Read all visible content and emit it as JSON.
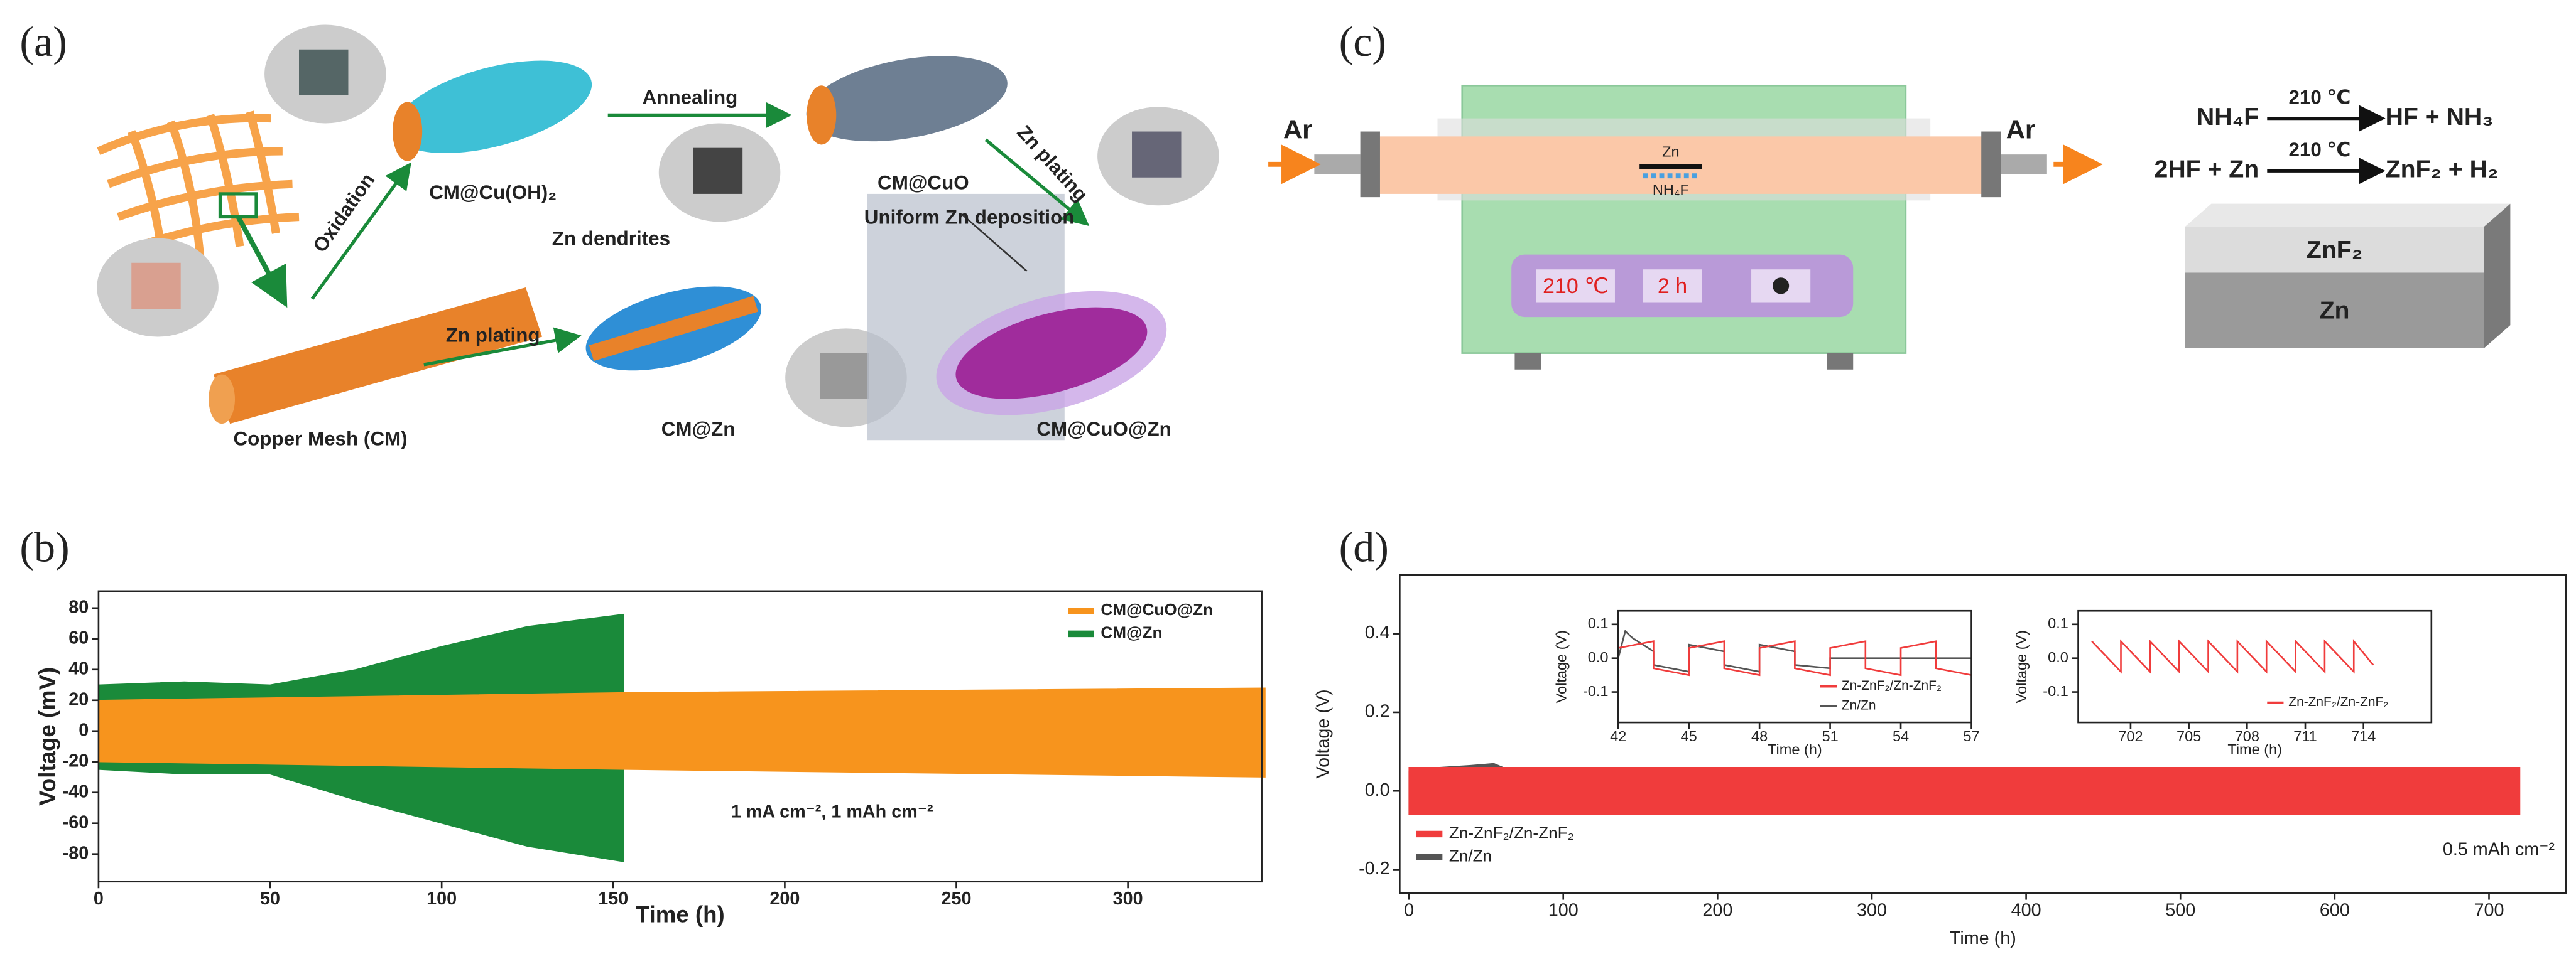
{
  "labels": [
    "(a)",
    "(b)",
    "(c)",
    "(d)"
  ],
  "diagram_a": {
    "annealing": "Annealing",
    "oxidation": "Oxidation",
    "zn_plating_top": "Zn plating",
    "zn_plating_bottom": "Zn plating",
    "cm_cuoh2": "CM@Cu(OH)₂",
    "cm_cuo": "CM@CuO",
    "uniform": "Uniform Zn deposition",
    "dendrites": "Zn dendrites",
    "copper_mesh": "Copper Mesh (CM)",
    "cm_zn": "CM@Zn",
    "cm_cuo_zn": "CM@CuO@Zn"
  },
  "diagram_c": {
    "ar_left": "Ar",
    "ar_right": "Ar",
    "zn": "Zn",
    "nh4f": "NH₄F",
    "temperature": "210 ℃",
    "duration": "2 h",
    "reactions": [
      {
        "left": "NH₄F",
        "condition": "210 ℃",
        "right": "HF + NH₃"
      },
      {
        "left": "2HF + Zn",
        "condition": "210 ℃",
        "right": "ZnF₂ + H₂"
      }
    ],
    "layer_top": "ZnF₂",
    "layer_bottom": "Zn"
  },
  "chart_data": [
    {
      "type": "area",
      "xlabel": "Time (h)",
      "ylabel": "Voltage (mV)",
      "annotation": "1 mA cm⁻², 1 mAh cm⁻²",
      "xlim": [
        0,
        339
      ],
      "ylim": [
        -98,
        91
      ],
      "xticks": [
        0,
        50,
        100,
        150,
        200,
        250,
        300
      ],
      "yticks": [
        -80,
        -60,
        -40,
        -20,
        0,
        20,
        40,
        60,
        80
      ],
      "series": [
        {
          "name": "CM@CuO@Zn",
          "color": "#f7941d",
          "x": [
            0,
            153,
            340
          ],
          "upper": [
            20,
            25,
            28
          ],
          "lower": [
            -20,
            -25,
            -30
          ]
        },
        {
          "name": "CM@Zn",
          "color": "#1a8a3a",
          "x": [
            0,
            25,
            50,
            75,
            100,
            125,
            153
          ],
          "upper": [
            30,
            32,
            30,
            40,
            55,
            68,
            76
          ],
          "lower": [
            -25,
            -28,
            -28,
            -45,
            -60,
            -75,
            -85
          ]
        }
      ]
    },
    {
      "type": "area",
      "xlabel": "Time (h)",
      "ylabel": "Voltage (V)",
      "annotation": "0.5 mAh cm⁻²",
      "xlim": [
        -6,
        750
      ],
      "ylim": [
        -0.26,
        0.55
      ],
      "xticks": [
        0,
        100,
        200,
        300,
        400,
        500,
        600,
        700
      ],
      "yticks": [
        -0.2,
        {
          "value": 0,
          "label": "0.0"
        },
        0.2,
        0.4
      ],
      "series": [
        {
          "name": "Zn-ZnF₂/Zn-ZnF₂",
          "color": "#f03c3c",
          "x": [
            0,
            720
          ],
          "upper": [
            0.06,
            0.06
          ],
          "lower": [
            -0.06,
            -0.06
          ]
        },
        {
          "name": "Zn/Zn",
          "color": "#555555",
          "x": [
            0,
            20,
            40,
            55,
            85
          ],
          "upper": [
            0.05,
            0.06,
            0.065,
            0.07,
            0.02
          ],
          "lower": [
            -0.06,
            -0.05,
            -0.05,
            -0.04,
            -0.01
          ]
        }
      ]
    },
    {
      "type": "line",
      "xlabel": "Time (h)",
      "ylabel": "Voltage (V)",
      "xlim": [
        42,
        57
      ],
      "ylim": [
        -0.19,
        0.14
      ],
      "xticks": [
        42,
        45,
        48,
        51,
        54,
        57
      ],
      "yticks": [
        -0.1,
        {
          "value": 0,
          "label": "0.0"
        },
        0.1
      ],
      "series": [
        {
          "name": "Zn-ZnF₂/Zn-ZnF₂",
          "color": "#f03c3c",
          "x": [
            42,
            42,
            43.5,
            43.5,
            45,
            45,
            46.5,
            46.5,
            48,
            48,
            49.5,
            49.5,
            51,
            51,
            52.5,
            52.5,
            54,
            54,
            55.5,
            55.5,
            57
          ],
          "values": [
            -0.02,
            0.03,
            0.05,
            -0.03,
            -0.05,
            0.03,
            0.05,
            -0.03,
            -0.05,
            0.03,
            0.05,
            -0.03,
            -0.05,
            0.03,
            0.05,
            -0.03,
            -0.05,
            0.03,
            0.05,
            -0.03,
            -0.05
          ]
        },
        {
          "name": "Zn/Zn",
          "color": "#555555",
          "x": [
            42,
            42.3,
            42.6,
            43.5,
            43.5,
            45,
            45,
            46.5,
            46.5,
            48,
            48,
            49.5,
            49.5,
            51,
            51,
            57
          ],
          "values": [
            0.0,
            0.08,
            0.06,
            0.02,
            -0.02,
            -0.04,
            0.04,
            0.02,
            -0.02,
            -0.04,
            0.04,
            0.02,
            -0.02,
            -0.03,
            0.0,
            0.0
          ]
        }
      ]
    },
    {
      "type": "line",
      "xlabel": "Time (h)",
      "ylabel": "Voltage (V)",
      "xlim": [
        699.3,
        717.5
      ],
      "ylim": [
        -0.19,
        0.14
      ],
      "xticks": [
        702,
        705,
        708,
        711,
        714
      ],
      "yticks": [
        -0.1,
        {
          "value": 0,
          "label": "0.0"
        },
        0.1
      ],
      "series": [
        {
          "name": "Zn-ZnF₂/Zn-ZnF₂",
          "color": "#f03c3c",
          "x": [
            700,
            701.5,
            701.5,
            703,
            703,
            704.5,
            704.5,
            706,
            706,
            707.5,
            707.5,
            709,
            709,
            710.5,
            710.5,
            712,
            712,
            713.5,
            713.5,
            714.5
          ],
          "values": [
            0.05,
            -0.04,
            0.05,
            -0.04,
            0.05,
            -0.04,
            0.05,
            -0.04,
            0.05,
            -0.04,
            0.05,
            -0.04,
            0.05,
            -0.04,
            0.05,
            -0.04,
            0.05,
            -0.04,
            0.05,
            -0.02
          ]
        }
      ]
    }
  ]
}
